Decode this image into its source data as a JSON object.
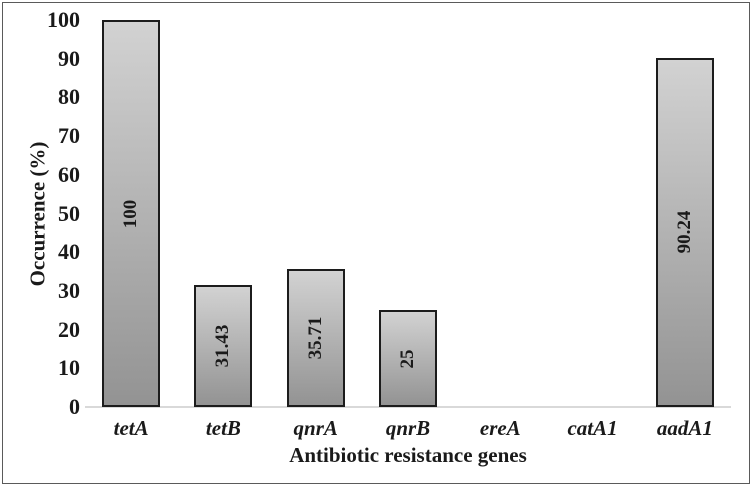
{
  "figure": {
    "background": "#ffffff",
    "frame_border_color": "#5a5a5a"
  },
  "chart_data": {
    "type": "bar",
    "title": "",
    "categories": [
      "tetA",
      "tetB",
      "qnrA",
      "qnrB",
      "ereA",
      "catA1",
      "aadA1"
    ],
    "values": [
      100,
      31.43,
      35.71,
      25,
      0,
      0,
      90.24
    ],
    "bar_labels": [
      "100",
      "31.43",
      "35.71",
      "25",
      "",
      "",
      "90.24"
    ],
    "xlabel": "Antibiotic resistance genes",
    "ylabel": "Occurrence (%)",
    "ylim": [
      0,
      100
    ],
    "yticks": [
      0,
      10,
      20,
      30,
      40,
      50,
      60,
      70,
      80,
      90,
      100
    ],
    "grid": false,
    "legend": false,
    "colors": {
      "bar_fill_top": "#d2d2d2",
      "bar_fill_bottom": "#939393",
      "bar_border": "#1c1c1c",
      "axis_line": "#d9d9d9",
      "text": "#1a1a1a"
    }
  }
}
